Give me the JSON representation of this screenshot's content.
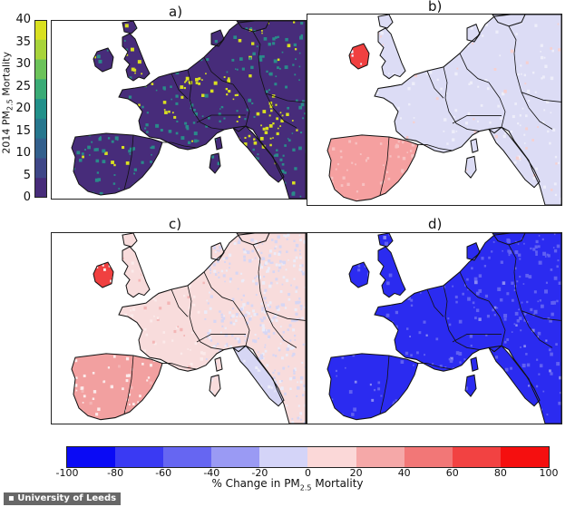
{
  "panels": [
    {
      "label": "a)",
      "kind": "mortality"
    },
    {
      "label": "b)",
      "kind": "b"
    },
    {
      "label": "c)",
      "kind": "c"
    },
    {
      "label": "d)",
      "kind": "d"
    }
  ],
  "colorbar_vertical": {
    "title_main": "2014 PM",
    "title_sub": "2.5",
    "title_tail": " Mortality",
    "ticks": [
      "40",
      "35",
      "30",
      "25",
      "20",
      "15",
      "10",
      "5",
      "0"
    ],
    "colors": [
      "#d9e021",
      "#a8d43b",
      "#6cc35a",
      "#3aab76",
      "#22908a",
      "#27778e",
      "#33608d",
      "#3f4788",
      "#472c7a"
    ]
  },
  "colorbar_horizontal": {
    "label_main": "% Change in PM",
    "label_sub": "2.5",
    "label_tail": " Mortality",
    "ticks": [
      "-100",
      "-80",
      "-60",
      "-40",
      "-20",
      "0",
      "20",
      "40",
      "60",
      "80",
      "100"
    ],
    "colors": [
      "#0a0af5",
      "#3a3af3",
      "#6666f2",
      "#9a9af4",
      "#d4d4f8",
      "#fbd8d8",
      "#f5a8a8",
      "#f27777",
      "#f24242",
      "#f50f0f"
    ]
  },
  "colors": {
    "sea": "#ffffff",
    "a_land": "#472c7a",
    "a_mid": "#2a8a8a",
    "a_hot": "#d9e021",
    "b_land": "#dcdcf5",
    "b_pos": "#f5a0a0",
    "b_strong": "#f04040",
    "c_land": "#f8dcdc",
    "c_pos": "#f2a0a0",
    "c_neg": "#d6d6f4",
    "d_land": "#2b2bf0",
    "d_light": "#6060f2",
    "border": "#111111"
  },
  "credit": "University of Leeds"
}
